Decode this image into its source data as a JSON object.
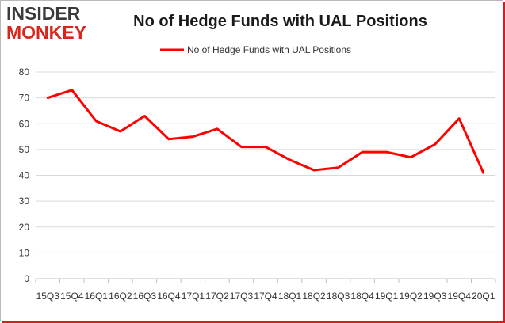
{
  "brand": {
    "logo_top": "INSIDER",
    "logo_bottom": "MONKEY"
  },
  "colors": {
    "line": "#ff0000",
    "grid": "#d9d9d9",
    "axis": "#bfbfbf",
    "brand_red": "#d9261c"
  },
  "chart_data": {
    "type": "line",
    "title": "No of Hedge Funds with UAL Positions",
    "xlabel": "",
    "ylabel": "",
    "ylim": [
      0,
      80
    ],
    "yticks": [
      0,
      10,
      20,
      30,
      40,
      50,
      60,
      70,
      80
    ],
    "grid": true,
    "legend_position": "top-center",
    "categories": [
      "15Q3",
      "15Q4",
      "16Q1",
      "16Q2",
      "16Q3",
      "16Q4",
      "17Q1",
      "17Q2",
      "17Q3",
      "17Q4",
      "18Q1",
      "18Q2",
      "18Q3",
      "18Q4",
      "19Q1",
      "19Q2",
      "19Q3",
      "19Q4",
      "20Q1"
    ],
    "series": [
      {
        "name": "No of Hedge Funds with UAL Positions",
        "values": [
          70,
          73,
          61,
          57,
          63,
          54,
          55,
          58,
          51,
          51,
          46,
          42,
          43,
          49,
          49,
          47,
          52,
          62,
          41
        ]
      }
    ]
  }
}
